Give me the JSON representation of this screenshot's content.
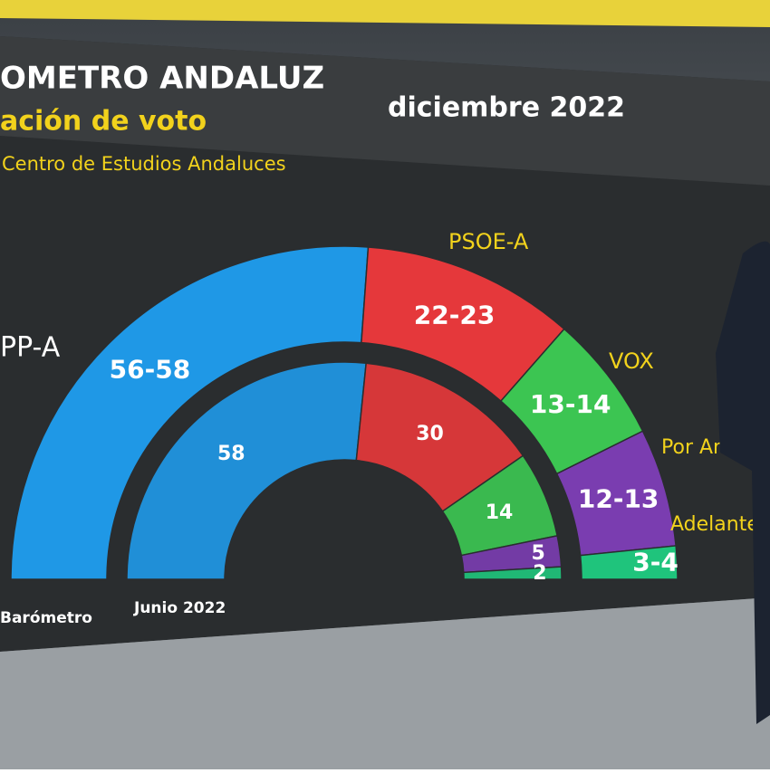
{
  "chart_data": {
    "type": "hemicycle",
    "title": "OMETRO ANDALUZ",
    "title_date": "diciembre 2022",
    "subtitle": "ación de voto",
    "source": "Centro de Estudios Andaluces",
    "categories": [
      "PP-A",
      "PSOE-A",
      "VOX",
      "Por Andaluci",
      "Adelante Andaluci"
    ],
    "colors": [
      "#1f98e6",
      "#e5383b",
      "#3cc552",
      "#7a3db0",
      "#1fc47c"
    ],
    "series": [
      {
        "name": "Barómetro",
        "values": [
          [
            56,
            58
          ],
          [
            22,
            23
          ],
          [
            13,
            14
          ],
          [
            12,
            13
          ],
          [
            3,
            4
          ]
        ],
        "value_labels": [
          "56-58",
          "22-23",
          "13-14",
          "12-13",
          "3-4"
        ]
      },
      {
        "name": "Junio 2022",
        "values": [
          58,
          30,
          14,
          5,
          2
        ]
      }
    ]
  }
}
